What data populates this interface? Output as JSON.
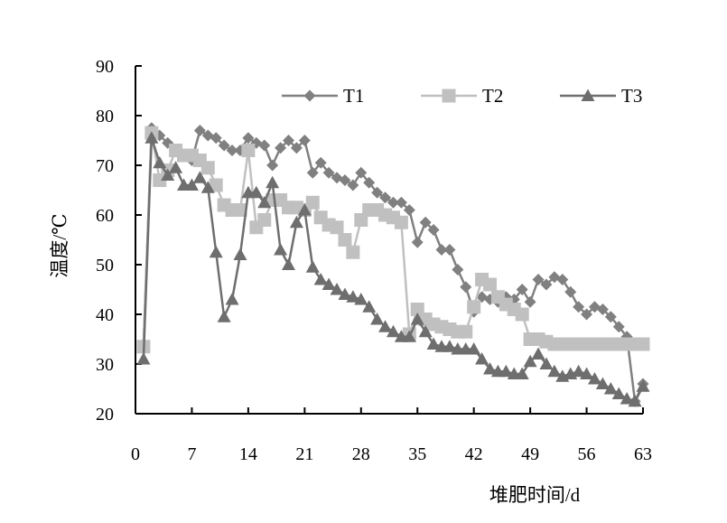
{
  "chart_data": {
    "type": "line",
    "title": "",
    "xlabel": "堆肥时间/d",
    "ylabel": "温度/℃",
    "xlim": [
      0,
      63
    ],
    "ylim": [
      20,
      90
    ],
    "x_ticks": [
      0,
      7,
      14,
      21,
      28,
      35,
      42,
      49,
      56,
      63
    ],
    "x_tick_labels": [
      "0",
      "7",
      "14",
      "21",
      "28",
      "35",
      "42",
      "49",
      "56",
      "63"
    ],
    "y_ticks": [
      20,
      30,
      40,
      50,
      60,
      70,
      80,
      90
    ],
    "y_tick_labels": [
      "20",
      "30",
      "40",
      "50",
      "60",
      "70",
      "80",
      "90"
    ],
    "grid": false,
    "legend_position": "top-right",
    "series": [
      {
        "name": "T1",
        "color": "#808080",
        "marker": "diamond",
        "points": [
          [
            1,
            34
          ],
          [
            2,
            77.5
          ],
          [
            3,
            76
          ],
          [
            4,
            74.5
          ],
          [
            5,
            73
          ],
          [
            6,
            72
          ],
          [
            7,
            71
          ],
          [
            8,
            77
          ],
          [
            9,
            76
          ],
          [
            10,
            75.5
          ],
          [
            11,
            74
          ],
          [
            12,
            73
          ],
          [
            13,
            73
          ],
          [
            14,
            75.5
          ],
          [
            15,
            74.5
          ],
          [
            16,
            74
          ],
          [
            17,
            70
          ],
          [
            18,
            73.5
          ],
          [
            19,
            75
          ],
          [
            20,
            73.5
          ],
          [
            21,
            75
          ],
          [
            22,
            68.5
          ],
          [
            23,
            70.5
          ],
          [
            24,
            68.5
          ],
          [
            25,
            67.5
          ],
          [
            26,
            67
          ],
          [
            27,
            66
          ],
          [
            28,
            68.5
          ],
          [
            29,
            66.5
          ],
          [
            30,
            64.5
          ],
          [
            31,
            63.5
          ],
          [
            32,
            62.5
          ],
          [
            33,
            62.5
          ],
          [
            34,
            61
          ],
          [
            35,
            54.5
          ],
          [
            36,
            58.5
          ],
          [
            37,
            57
          ],
          [
            38,
            53
          ],
          [
            39,
            53
          ],
          [
            40,
            49
          ],
          [
            41,
            45.5
          ],
          [
            42,
            40.5
          ],
          [
            43,
            43.5
          ],
          [
            44,
            43
          ],
          [
            45,
            42.5
          ],
          [
            46,
            43.5
          ],
          [
            47,
            43
          ],
          [
            48,
            45
          ],
          [
            49,
            42.5
          ],
          [
            50,
            47
          ],
          [
            51,
            46
          ],
          [
            52,
            47.5
          ],
          [
            53,
            47
          ],
          [
            54,
            44.5
          ],
          [
            55,
            41.5
          ],
          [
            56,
            40
          ],
          [
            57,
            41.5
          ],
          [
            58,
            41
          ],
          [
            59,
            39.5
          ],
          [
            60,
            37.5
          ],
          [
            61,
            35.5
          ],
          [
            62,
            22.5
          ],
          [
            63,
            26
          ]
        ]
      },
      {
        "name": "T2",
        "color": "#c0c0c0",
        "marker": "square",
        "points": [
          [
            1,
            33.5
          ],
          [
            2,
            76.5
          ],
          [
            3,
            67
          ],
          [
            4,
            69
          ],
          [
            5,
            73
          ],
          [
            6,
            72
          ],
          [
            7,
            72
          ],
          [
            8,
            71
          ],
          [
            9,
            69.5
          ],
          [
            10,
            66
          ],
          [
            11,
            62
          ],
          [
            12,
            61
          ],
          [
            13,
            61
          ],
          [
            14,
            73
          ],
          [
            15,
            57.5
          ],
          [
            16,
            59
          ],
          [
            17,
            63
          ],
          [
            18,
            63
          ],
          [
            19,
            61.5
          ],
          [
            20,
            61.5
          ],
          [
            21,
            61
          ],
          [
            22,
            62.5
          ],
          [
            23,
            59.5
          ],
          [
            24,
            58
          ],
          [
            25,
            57.5
          ],
          [
            26,
            55
          ],
          [
            27,
            52.5
          ],
          [
            28,
            59
          ],
          [
            29,
            61
          ],
          [
            30,
            61
          ],
          [
            31,
            60
          ],
          [
            32,
            59.5
          ],
          [
            33,
            58.5
          ],
          [
            34,
            36
          ],
          [
            35,
            41
          ],
          [
            36,
            39
          ],
          [
            37,
            38
          ],
          [
            38,
            37.5
          ],
          [
            39,
            37
          ],
          [
            40,
            36.5
          ],
          [
            41,
            36.5
          ],
          [
            42,
            41.5
          ],
          [
            43,
            47
          ],
          [
            44,
            46
          ],
          [
            45,
            43.5
          ],
          [
            46,
            42
          ],
          [
            47,
            41
          ],
          [
            48,
            40
          ],
          [
            49,
            35
          ],
          [
            50,
            35
          ],
          [
            51,
            34.5
          ],
          [
            52,
            34
          ],
          [
            53,
            34
          ],
          [
            54,
            34
          ],
          [
            55,
            34
          ],
          [
            56,
            34
          ],
          [
            57,
            34
          ],
          [
            58,
            34
          ],
          [
            59,
            34
          ],
          [
            60,
            34
          ],
          [
            61,
            34
          ],
          [
            62,
            34
          ],
          [
            63,
            34
          ]
        ]
      },
      {
        "name": "T3",
        "color": "#6e6e6e",
        "marker": "triangle",
        "points": [
          [
            1,
            31
          ],
          [
            2,
            75.5
          ],
          [
            3,
            70.5
          ],
          [
            4,
            68
          ],
          [
            5,
            69.5
          ],
          [
            6,
            66
          ],
          [
            7,
            66
          ],
          [
            8,
            67.5
          ],
          [
            9,
            65.5
          ],
          [
            10,
            52.5
          ],
          [
            11,
            39.5
          ],
          [
            12,
            43
          ],
          [
            13,
            52
          ],
          [
            14,
            64.5
          ],
          [
            15,
            64.5
          ],
          [
            16,
            62.5
          ],
          [
            17,
            66.5
          ],
          [
            18,
            53
          ],
          [
            19,
            50
          ],
          [
            20,
            58.5
          ],
          [
            21,
            61
          ],
          [
            22,
            49.5
          ],
          [
            23,
            47
          ],
          [
            24,
            46
          ],
          [
            25,
            45
          ],
          [
            26,
            44
          ],
          [
            27,
            43.5
          ],
          [
            28,
            43
          ],
          [
            29,
            41.5
          ],
          [
            30,
            39
          ],
          [
            31,
            37.5
          ],
          [
            32,
            36.5
          ],
          [
            33,
            35.5
          ],
          [
            34,
            35.5
          ],
          [
            35,
            39
          ],
          [
            36,
            36.5
          ],
          [
            37,
            34
          ],
          [
            38,
            33.5
          ],
          [
            39,
            33.5
          ],
          [
            40,
            33
          ],
          [
            41,
            33
          ],
          [
            42,
            33
          ],
          [
            43,
            31
          ],
          [
            44,
            29
          ],
          [
            45,
            28.5
          ],
          [
            46,
            28.5
          ],
          [
            47,
            28
          ],
          [
            48,
            28
          ],
          [
            49,
            30.5
          ],
          [
            50,
            32
          ],
          [
            51,
            30
          ],
          [
            52,
            28.5
          ],
          [
            53,
            27.5
          ],
          [
            54,
            28
          ],
          [
            55,
            28.5
          ],
          [
            56,
            28
          ],
          [
            57,
            27
          ],
          [
            58,
            26
          ],
          [
            59,
            25
          ],
          [
            60,
            24
          ],
          [
            61,
            23
          ],
          [
            62,
            22.5
          ],
          [
            63,
            25.5
          ]
        ]
      }
    ]
  }
}
